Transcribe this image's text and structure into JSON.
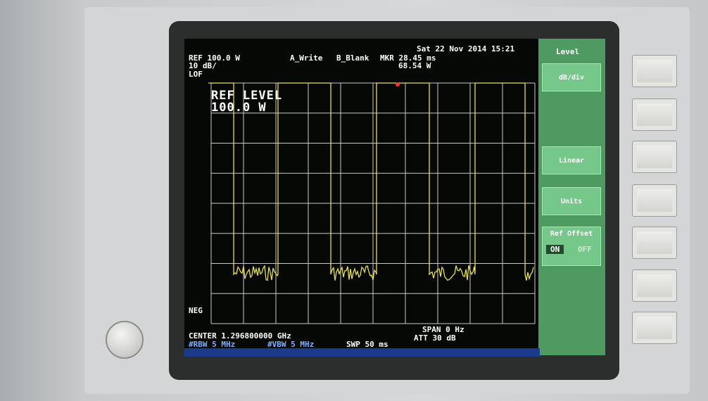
{
  "header": {
    "ref": "REF 100.0 W",
    "scale": "10 dB/",
    "detector": "LOF",
    "trace_a": "A_Write",
    "trace_b": "B_Blank",
    "marker_time": "MKR 28.45 ms",
    "marker_level": "68.54 W",
    "datetime": "Sat 22 Nov 2014 15:21"
  },
  "overlay": {
    "title": "REF LEVEL",
    "value": "100.0 W"
  },
  "neg": "NEG",
  "footer": {
    "center": "CENTER 1.296800000 GHz",
    "rbw": "#RBW 5 MHz",
    "vbw": "#VBW 5 MHz",
    "sweep": "SWP 50 ms",
    "span": "SPAN 0 Hz",
    "att": "ATT 30 dB"
  },
  "menu": {
    "title": "Level",
    "keys": [
      "dB/div",
      "Linear",
      "Units",
      "Ref Offset"
    ],
    "toggle": [
      "ON",
      "OFF"
    ]
  }
}
